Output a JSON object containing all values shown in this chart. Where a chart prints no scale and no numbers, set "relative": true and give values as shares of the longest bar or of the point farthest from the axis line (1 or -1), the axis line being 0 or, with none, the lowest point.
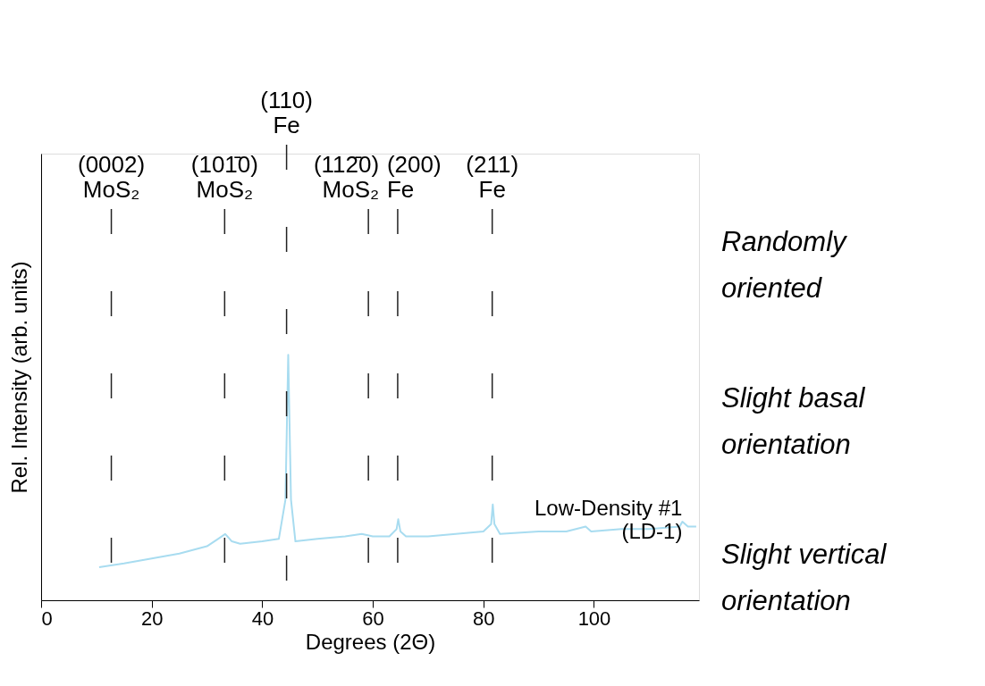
{
  "chart_data": {
    "type": "line",
    "relative": true,
    "xlabel": "Degrees (2Θ)",
    "ylabel": "Rel. Intensity (arb. units)",
    "xlim": [
      0,
      119
    ],
    "xticks": [
      0,
      20,
      40,
      60,
      80,
      100
    ],
    "series": [
      {
        "color": "#a8dcf0",
        "x": [
          10.5,
          15,
          20,
          25,
          30,
          32,
          33.3,
          34.5,
          36,
          40,
          43,
          44.2,
          44.7,
          45.2,
          46,
          50,
          55,
          58,
          60,
          63,
          64.3,
          64.6,
          65,
          66,
          70,
          75,
          80,
          81.4,
          81.7,
          82,
          83,
          90,
          95,
          98.5,
          99.5,
          105,
          110,
          115.5,
          116,
          117,
          118.5
        ],
        "values": [
          0.135,
          0.15,
          0.17,
          0.19,
          0.22,
          0.25,
          0.27,
          0.24,
          0.23,
          0.24,
          0.25,
          0.41,
          1.0,
          0.41,
          0.24,
          0.25,
          0.26,
          0.27,
          0.26,
          0.26,
          0.29,
          0.33,
          0.28,
          0.26,
          0.26,
          0.27,
          0.28,
          0.31,
          0.39,
          0.31,
          0.27,
          0.28,
          0.28,
          0.3,
          0.28,
          0.29,
          0.29,
          0.3,
          0.32,
          0.3,
          0.3
        ]
      }
    ],
    "ref_lines": [
      {
        "axis": "x",
        "value": 12.7,
        "label": "(0002)\nMoS₂",
        "color": "#222222",
        "line_style": "dashed"
      },
      {
        "axis": "x",
        "value": 33.2,
        "label": "(101̄0)\nMoS₂",
        "color": "#222222",
        "line_style": "dashed"
      },
      {
        "axis": "x",
        "value": 44.4,
        "label": "(110)\nFe",
        "color": "#222222",
        "line_style": "dashed"
      },
      {
        "axis": "x",
        "value": 59.2,
        "label": "(112̄0)\nMoS₂",
        "color": "#222222",
        "line_style": "dashed"
      },
      {
        "axis": "x",
        "value": 64.5,
        "label": "(200)\nFe",
        "color": "#222222",
        "line_style": "dashed"
      },
      {
        "axis": "x",
        "value": 81.6,
        "label": "(211)\nFe",
        "color": "#222222",
        "line_style": "dashed"
      }
    ],
    "annotations": [
      {
        "text": "Low-Density #1\n(LD-1)",
        "x": 116,
        "y": 0.32
      },
      "Randomly\noriented",
      "Slight basal\norientation",
      "Slight vertical\norientation"
    ]
  }
}
